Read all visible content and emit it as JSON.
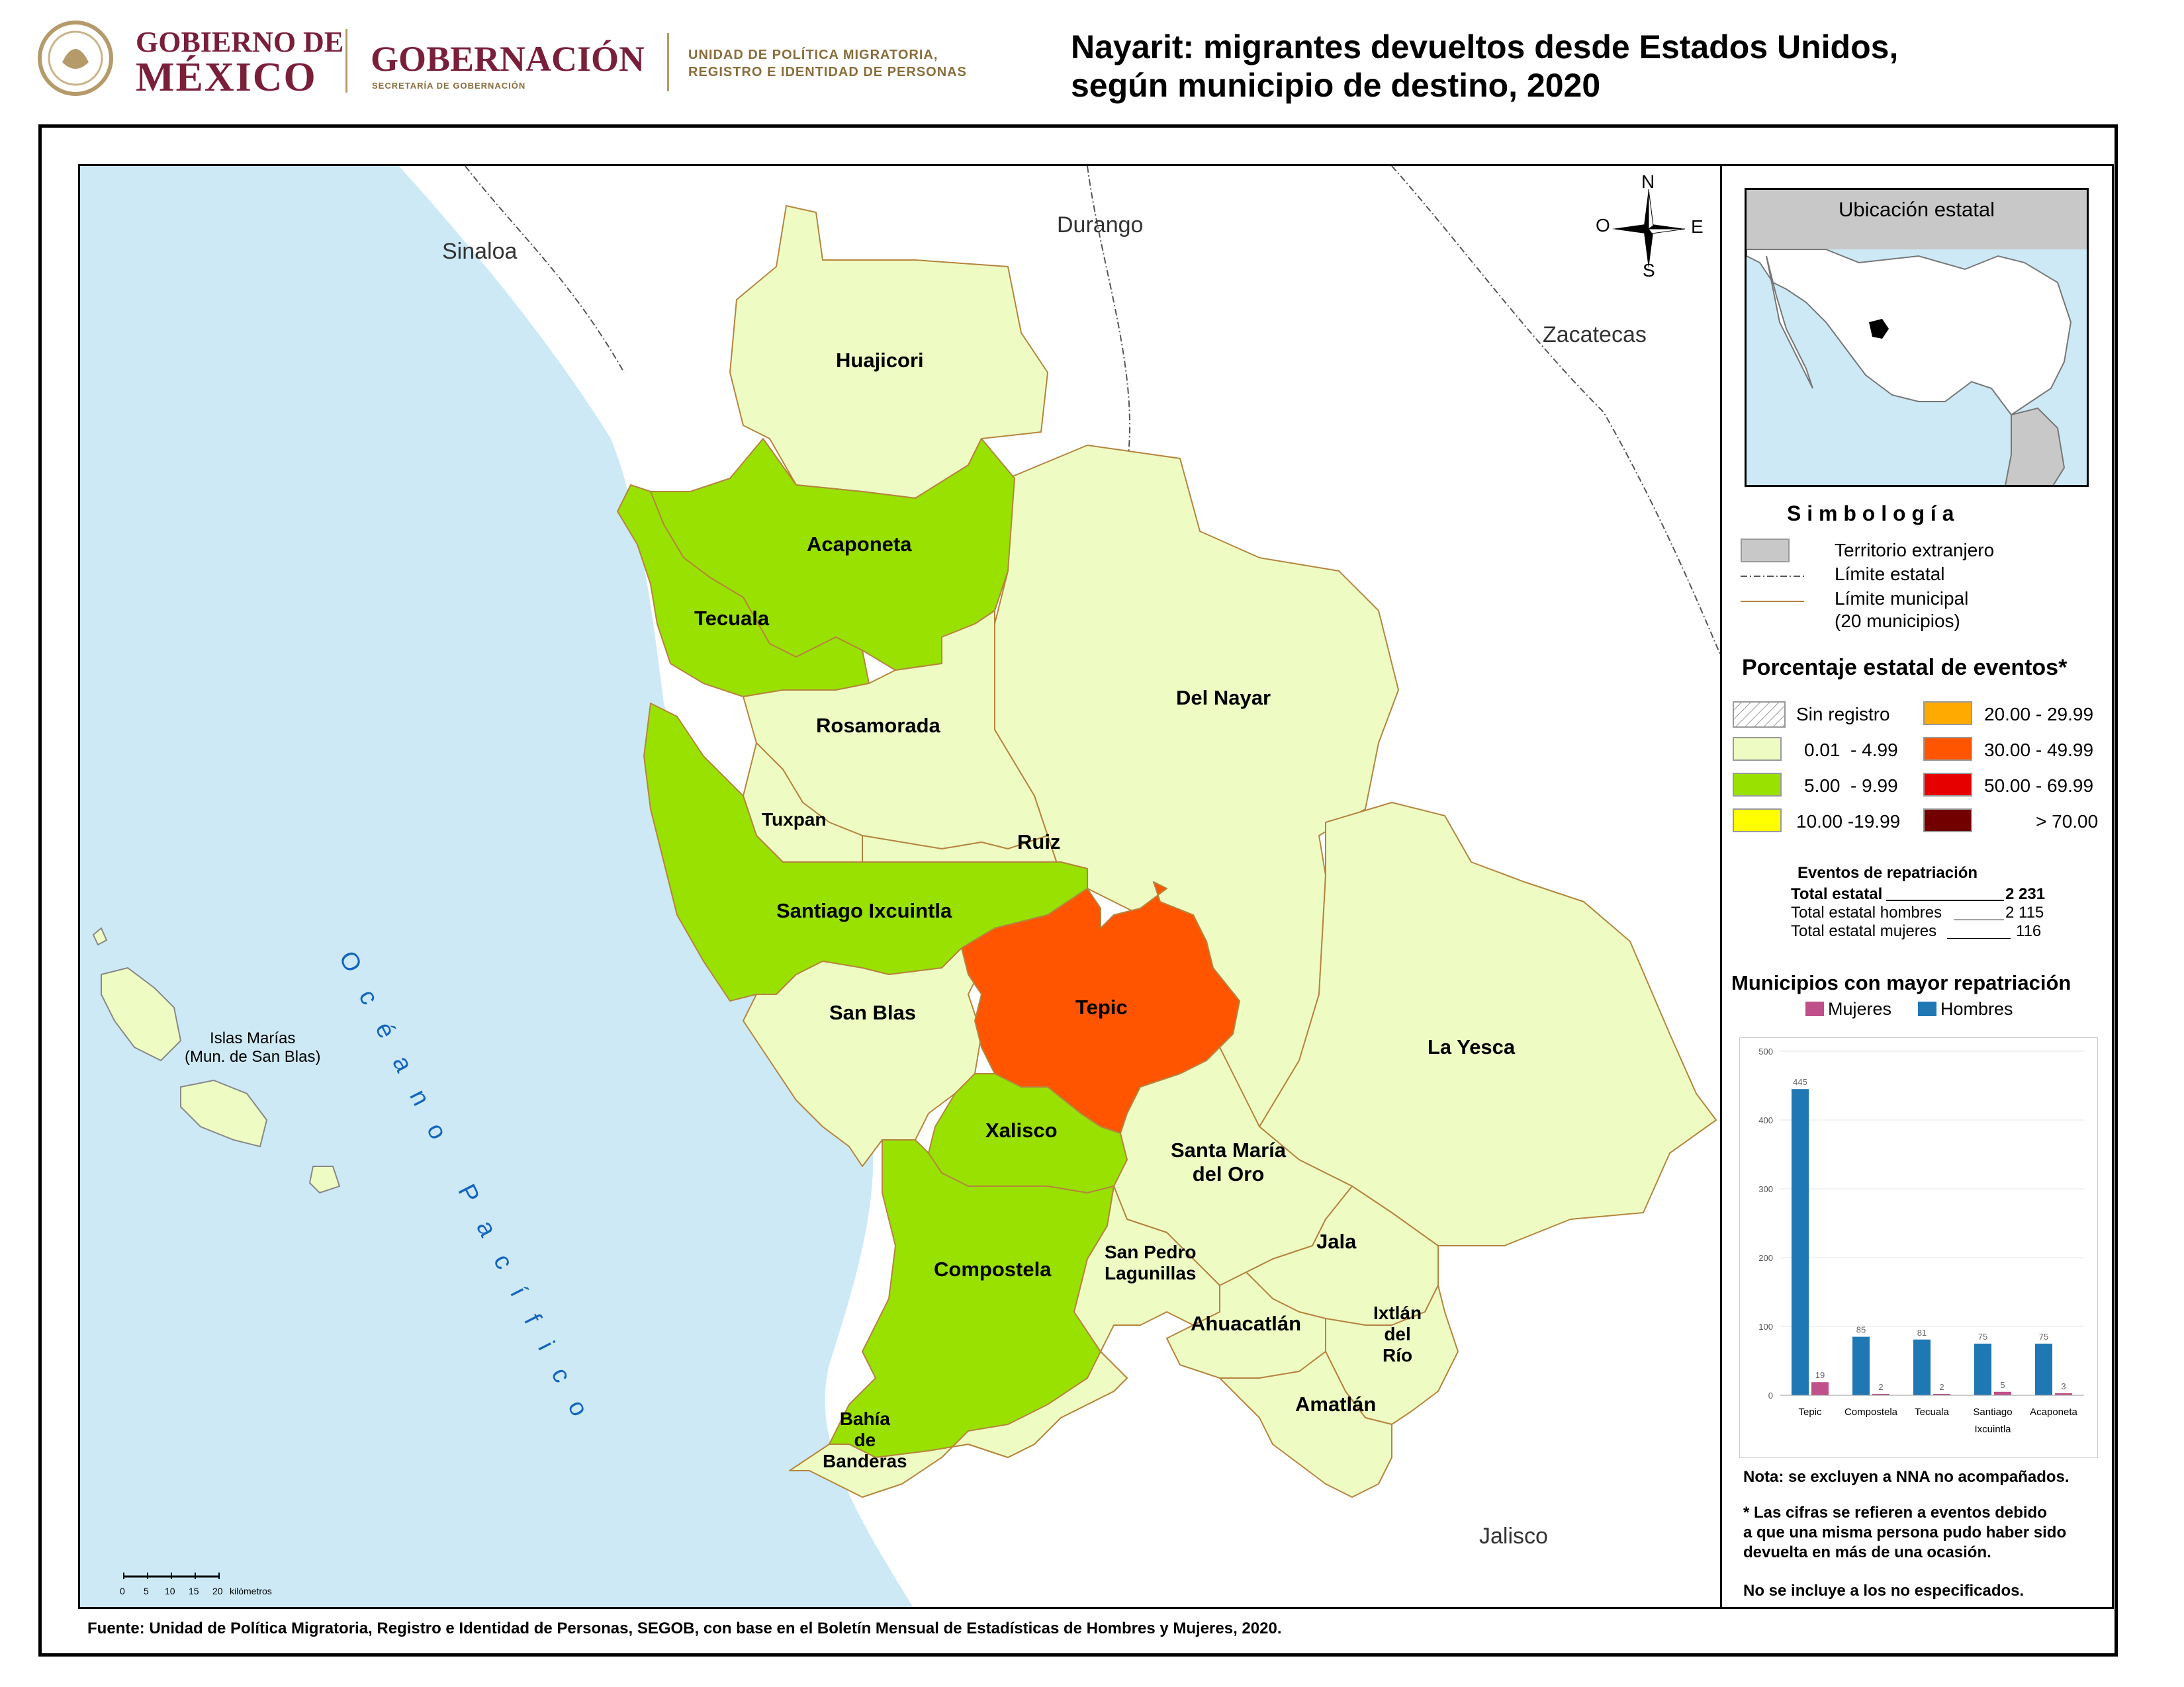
{
  "header": {
    "gov_line1": "GOBIERNO DE",
    "gov_line2": "MÉXICO",
    "ministry": "GOBERNACIÓN",
    "ministry_sub": "SECRETARÍA DE GOBERNACIÓN",
    "unit_line1": "UNIDAD DE POLÍTICA MIGRATORIA,",
    "unit_line2": "REGISTRO E IDENTIDAD DE PERSONAS",
    "title_line1": "Nayarit: migrantes devueltos desde Estados Unidos,",
    "title_line2": "según municipio de destino, 2020"
  },
  "map": {
    "neighbors": [
      "Sinaloa",
      "Durango",
      "Zacatecas",
      "Jalisco"
    ],
    "ocean": "Océano Pacífico",
    "islands": "Islas Marías\n(Mun. de San Blas)",
    "compass": {
      "n": "N",
      "s": "S",
      "e": "E",
      "w": "O"
    },
    "scale": {
      "ticks": [
        "0",
        "5",
        "10",
        "15",
        "20"
      ],
      "unit": "kilómetros"
    },
    "municipalities": [
      {
        "name": "Huajicori",
        "class": "0.01 - 4.99"
      },
      {
        "name": "Acaponeta",
        "class": "5.00 - 9.99"
      },
      {
        "name": "Tecuala",
        "class": "5.00 - 9.99"
      },
      {
        "name": "Rosamorada",
        "class": "0.01 - 4.99"
      },
      {
        "name": "Del Nayar",
        "class": "0.01 - 4.99"
      },
      {
        "name": "Tuxpan",
        "class": "0.01 - 4.99"
      },
      {
        "name": "Ruiz",
        "class": "0.01 - 4.99"
      },
      {
        "name": "Santiago Ixcuintla",
        "class": "5.00 - 9.99"
      },
      {
        "name": "San Blas",
        "class": "0.01 - 4.99"
      },
      {
        "name": "Tepic",
        "class": "30.00 - 49.99"
      },
      {
        "name": "La Yesca",
        "class": "0.01 - 4.99"
      },
      {
        "name": "Xalisco",
        "class": "5.00 - 9.99"
      },
      {
        "name": "Santa María\ndel Oro",
        "class": "0.01 - 4.99"
      },
      {
        "name": "San Pedro\nLagunillas",
        "class": "0.01 - 4.99"
      },
      {
        "name": "Jala",
        "class": "0.01 - 4.99"
      },
      {
        "name": "Compostela",
        "class": "5.00 - 9.99"
      },
      {
        "name": "Ahuacatlán",
        "class": "0.01 - 4.99"
      },
      {
        "name": "Ixtlán\ndel\nRío",
        "class": "0.01 - 4.99"
      },
      {
        "name": "Amatlán",
        "class": "0.01 - 4.99"
      },
      {
        "name": "Bahía\nde\nBanderas",
        "class": "0.01 - 4.99"
      }
    ]
  },
  "inset": {
    "title": "Ubicación estatal"
  },
  "legend": {
    "title": "S i m b o l o g í a",
    "items": [
      "Territorio extranjero",
      "Límite estatal",
      "Límite municipal\n(20 municipios)"
    ],
    "percent_title": "Porcentaje estatal de eventos*",
    "classes": [
      {
        "label": "Sin registro",
        "color": "hatched"
      },
      {
        "label": "0.01  - 4.99",
        "color": "#eefcc4"
      },
      {
        "label": "5.00  - 9.99",
        "color": "#99e100"
      },
      {
        "label": "10.00 -19.99",
        "color": "#ffff00"
      },
      {
        "label": "20.00 - 29.99",
        "color": "#ffaa00"
      },
      {
        "label": "30.00 - 49.99",
        "color": "#ff5500"
      },
      {
        "label": "50.00 - 69.99",
        "color": "#e60000"
      },
      {
        "label": "> 70.00",
        "color": "#730000"
      }
    ]
  },
  "events": {
    "title": "Eventos de repatriación",
    "rows": [
      {
        "label": "Total estatal",
        "value": "2 231"
      },
      {
        "label": "Total estatal hombres",
        "value": "2 115"
      },
      {
        "label": "Total estatal mujeres",
        "value": "116"
      }
    ]
  },
  "chart_data": {
    "type": "bar",
    "title": "Municipios con mayor repatriación",
    "categories": [
      "Tepic",
      "Compostela",
      "Tecuala",
      "Santiago Ixcuintla",
      "Acaponeta"
    ],
    "series": [
      {
        "name": "Hombres",
        "values": [
          445,
          85,
          81,
          75,
          75
        ],
        "color": "#1f77b4"
      },
      {
        "name": "Mujeres",
        "values": [
          19,
          2,
          2,
          5,
          3
        ],
        "color": "#c0508a"
      }
    ],
    "ylim": [
      0,
      500
    ],
    "yticks": [
      0,
      100,
      200,
      300,
      400,
      500
    ],
    "legend": "top"
  },
  "notes": {
    "note1": "Nota: se excluyen a NNA no acompañados.",
    "note2": "* Las cifras se refieren a eventos debido\na que una misma persona pudo haber sido\ndevuelta en más de una ocasión.",
    "note3": "No se incluye a los no especificados."
  },
  "footer": "Fuente: Unidad de Política Migratoria, Registro e Identidad de Personas, SEGOB, con base en el Boletín Mensual de Estadísticas de Hombres y Mujeres, 2020."
}
